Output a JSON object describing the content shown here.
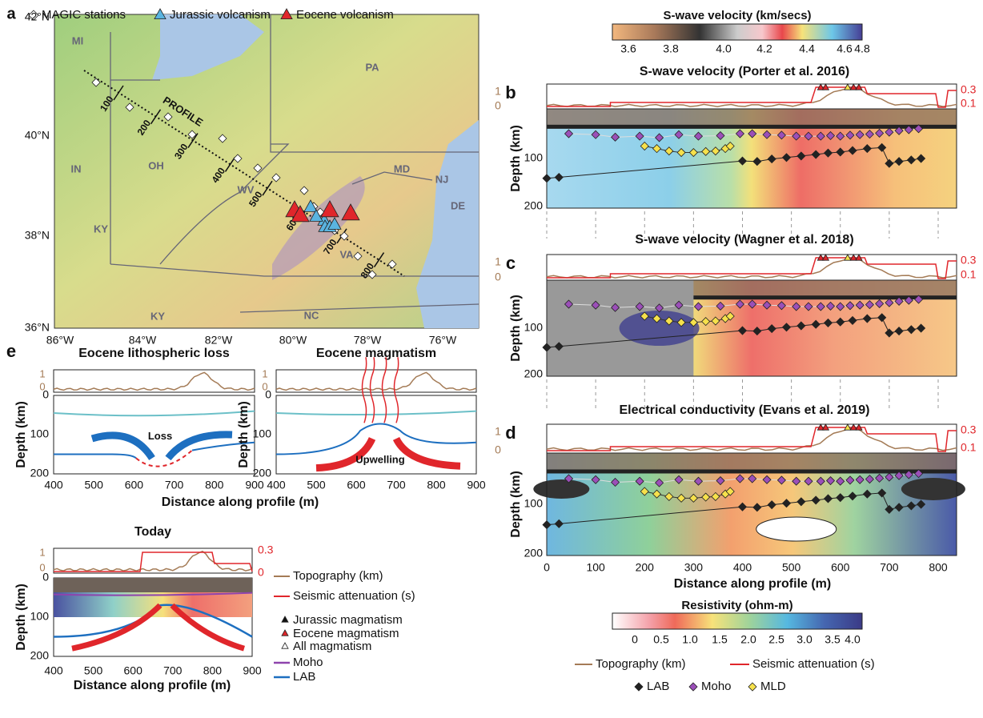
{
  "panel_a": {
    "label": "a",
    "legend": [
      "MAGIC stations",
      "Jurassic volcanism",
      "Eocene volcanism"
    ],
    "lat_labels": [
      "42°N",
      "40°N",
      "38°N",
      "36°N"
    ],
    "lon_labels": [
      "86°W",
      "84°W",
      "82°W",
      "80°W",
      "78°W",
      "76°W"
    ],
    "states": [
      "MI",
      "IN",
      "OH",
      "PA",
      "MD",
      "NJ",
      "DE",
      "WV",
      "VA",
      "KY",
      "KY",
      "NC"
    ],
    "profile_label": "PROFILE",
    "distance_labels": [
      "100",
      "200",
      "300",
      "400",
      "500",
      "600",
      "700",
      "800"
    ]
  },
  "velocity_colorbar": {
    "title": "S-wave velocity (km/secs)",
    "ticks": [
      "3.6",
      "3.8",
      "4.0",
      "4.2",
      "4.4",
      "4.6",
      "4.8"
    ]
  },
  "panel_b": {
    "label": "b",
    "title": "S-wave velocity (Porter et al. 2016)"
  },
  "panel_c": {
    "label": "c",
    "title": "S-wave velocity (Wagner et al. 2018)"
  },
  "panel_d": {
    "label": "d",
    "title": "Electrical conductivity (Evans et al. 2019)"
  },
  "profile_axes": {
    "topo_ticks": [
      "1",
      "0"
    ],
    "atten_ticks": [
      "0.3",
      "0.1"
    ],
    "depth_ticks": [
      "100",
      "200"
    ],
    "depth_label": "Depth (km)",
    "distance_ticks": [
      "0",
      "100",
      "200",
      "300",
      "400",
      "500",
      "600",
      "700",
      "800"
    ],
    "distance_label": "Distance along profile (m)"
  },
  "profile_points": {
    "lab": {
      "x": [
        0,
        25,
        400,
        430,
        460,
        490,
        520,
        550,
        575,
        600,
        625,
        655,
        685,
        700,
        720,
        745,
        765
      ],
      "depth": [
        140,
        138,
        105,
        106,
        101,
        98,
        95,
        92,
        89,
        87,
        84,
        80,
        78,
        110,
        106,
        103,
        100
      ]
    },
    "moho": {
      "x": [
        45,
        100,
        140,
        190,
        230,
        270,
        310,
        355,
        395,
        420,
        450,
        480,
        510,
        535,
        560,
        580,
        600,
        620,
        640,
        660,
        680,
        700,
        720,
        740,
        760
      ],
      "depth": [
        50,
        52,
        57,
        55,
        58,
        52,
        55,
        54,
        50,
        50,
        52,
        53,
        55,
        55,
        55,
        54,
        55,
        53,
        52,
        51,
        49,
        47,
        44,
        42,
        40
      ]
    },
    "mld": {
      "x": [
        200,
        225,
        250,
        275,
        300,
        325,
        345,
        365,
        375
      ],
      "depth": [
        75,
        80,
        85,
        88,
        88,
        86,
        85,
        80,
        75
      ]
    }
  },
  "resistivity_colorbar": {
    "title": "Resistivity (ohm-m)",
    "ticks": [
      "0",
      "0.5",
      "1.0",
      "1.5",
      "2.0",
      "2.5",
      "3.0",
      "3.5",
      "4.0"
    ]
  },
  "legend": {
    "topography": "Topography (km)",
    "attenuation": "Seismic attenuation (s)",
    "lab": "LAB",
    "moho": "Moho",
    "mld": "MLD"
  },
  "panel_e": {
    "label": "e",
    "loss_title": "Eocene lithospheric loss",
    "loss_annotation": "Loss",
    "magmatism_title": "Eocene magmatism",
    "upwelling_annotation": "Upwelling",
    "today_title": "Today",
    "topo_ticks": [
      "1",
      "0"
    ],
    "atten_ticks": [
      "0.3",
      "0"
    ],
    "depth_ticks": [
      "0",
      "100",
      "200"
    ],
    "distance_ticks": [
      "400",
      "500",
      "600",
      "700",
      "800",
      "900"
    ],
    "depth_label": "Depth (km)",
    "distance_label": "Distance along profile (m)",
    "legend": [
      "Topography (km)",
      "Seismic attenuation (s)",
      "Jurassic magmatism",
      "Eocene magmatism",
      "All magmatism",
      "Moho",
      "LAB"
    ]
  }
}
